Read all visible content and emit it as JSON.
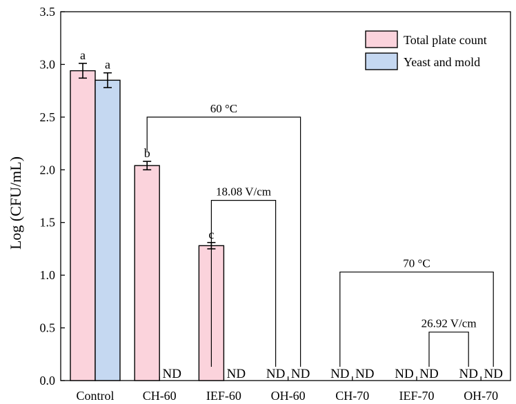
{
  "chart_data": {
    "type": "bar",
    "title": "",
    "xlabel": "",
    "ylabel": "Log (CFU/mL)",
    "ylim": [
      0,
      3.5
    ],
    "yticks": [
      "0.0",
      "0.5",
      "1.0",
      "1.5",
      "2.0",
      "2.5",
      "3.0",
      "3.5"
    ],
    "grid": false,
    "legend_position": "top-right",
    "categories": [
      "Control",
      "CH-60",
      "IEF-60",
      "OH-60",
      "CH-70",
      "IEF-70",
      "OH-70"
    ],
    "series": [
      {
        "name": "Total plate count",
        "color": "#fbd3dc",
        "values": [
          2.94,
          2.04,
          1.28,
          null,
          null,
          null,
          null
        ],
        "errors": [
          0.07,
          0.04,
          0.03,
          null,
          null,
          null,
          null
        ],
        "labels": [
          "a",
          "b",
          "c",
          "ND",
          "ND",
          "ND",
          "ND"
        ]
      },
      {
        "name": "Yeast and mold",
        "color": "#c5d8f1",
        "values": [
          2.85,
          null,
          null,
          null,
          null,
          null,
          null
        ],
        "errors": [
          0.07,
          null,
          null,
          null,
          null,
          null,
          null
        ],
        "labels": [
          "a",
          "ND",
          "ND",
          "ND",
          "ND",
          "ND",
          "ND"
        ]
      }
    ],
    "annotations": [
      {
        "text": "60 °C",
        "from_category": "CH-60",
        "to_category": "OH-60",
        "level": 2.5
      },
      {
        "text": "18.08 V/cm",
        "from_category": "IEF-60",
        "to_category": "OH-60",
        "level": 1.71
      },
      {
        "text": "70 °C",
        "from_category": "CH-70",
        "to_category": "OH-70",
        "level": 1.03
      },
      {
        "text": "26.92 V/cm",
        "from_category": "IEF-70",
        "to_category": "OH-70",
        "level": 0.46
      }
    ]
  }
}
